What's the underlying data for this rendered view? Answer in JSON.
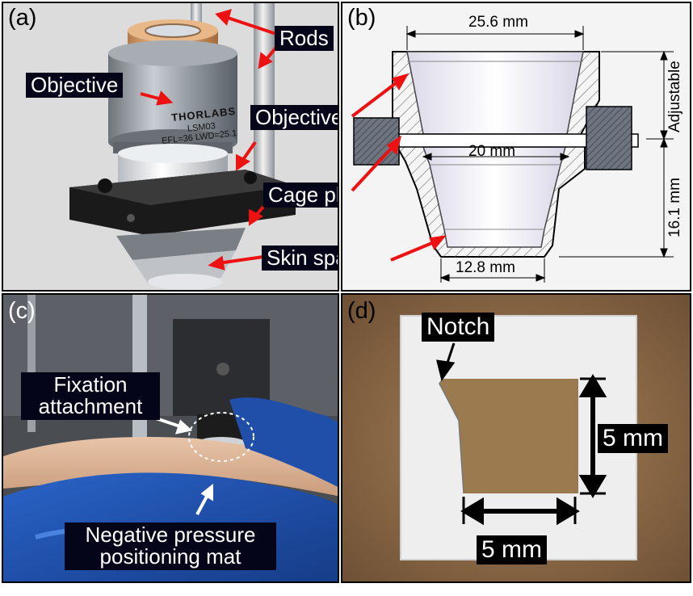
{
  "panels": {
    "a": {
      "label": "(a)",
      "callouts": {
        "rods": "Rods",
        "objective": "Objective",
        "objective_spacer": "Objective spacer",
        "cage_plate": "Cage plate",
        "skin_spacer": "Skin spacer"
      },
      "lens_brand": "THORLABS",
      "lens_model": "LSM03",
      "lens_spec": "EFL=36 LWD=25.1"
    },
    "b": {
      "label": "(b)",
      "dims": {
        "top_width": "25.6 mm",
        "mid_width": "20 mm",
        "bottom_width": "12.8 mm",
        "height": "16.1 mm",
        "adjustable": "Adjustable"
      }
    },
    "c": {
      "label": "(c)",
      "callouts": {
        "fixation": "Fixation attachment",
        "mat": "Negative pressure positioning mat"
      }
    },
    "d": {
      "label": "(d)",
      "callouts": {
        "notch": "Notch",
        "height": "5 mm",
        "width": "5 mm"
      }
    }
  },
  "colors": {
    "callout_bg": "#05051a",
    "arrow_red": "#ee1111",
    "hatch_fill": "#6f7580"
  }
}
